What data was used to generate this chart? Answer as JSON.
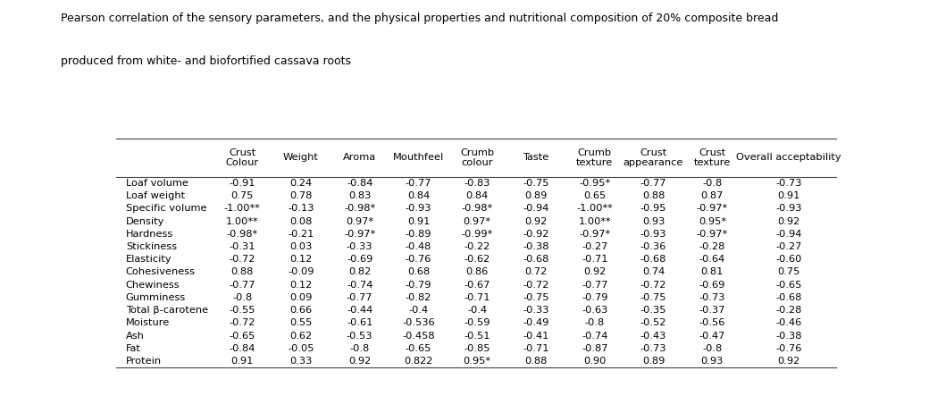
{
  "title_line1": "Pearson correlation of the sensory parameters, and the physical properties and nutritional composition of 20% composite bread",
  "title_line2": "produced from white- and biofortified cassava roots",
  "col_headers": [
    "Crust\nColour",
    "Weight",
    "Aroma",
    "Mouthfeel",
    "Crumb\ncolour",
    "Taste",
    "Crumb\ntexture",
    "Crust\nappearance",
    "Crust\ntexture",
    "Overall acceptability"
  ],
  "row_headers": [
    "Loaf volume",
    "Loaf weight",
    "Specific volume",
    "Density",
    "Hardness",
    "Stickiness",
    "Elasticity",
    "Cohesiveness",
    "Chewiness",
    "Gumminess",
    "Total β-carotene",
    "Moisture",
    "Ash",
    "Fat",
    "Protein"
  ],
  "table_data": [
    [
      "-0.91",
      "0.24",
      "-0.84",
      "-0.77",
      "-0.83",
      "-0.75",
      "-0.95*",
      "-0.77",
      "-0.8",
      "-0.73"
    ],
    [
      "0.75",
      "0.78",
      "0.83",
      "0.84",
      "0.84",
      "0.89",
      "0.65",
      "0.88",
      "0.87",
      "0.91"
    ],
    [
      "-1.00**",
      "-0.13",
      "-0.98*",
      "-0.93",
      "-0.98*",
      "-0.94",
      "-1.00**",
      "-0.95",
      "-0.97*",
      "-0.93"
    ],
    [
      "1.00**",
      "0.08",
      "0.97*",
      "0.91",
      "0.97*",
      "0.92",
      "1.00**",
      "0.93",
      "0.95*",
      "0.92"
    ],
    [
      "-0.98*",
      "-0.21",
      "-0.97*",
      "-0.89",
      "-0.99*",
      "-0.92",
      "-0.97*",
      "-0.93",
      "-0.97*",
      "-0.94"
    ],
    [
      "-0.31",
      "0.03",
      "-0.33",
      "-0.48",
      "-0.22",
      "-0.38",
      "-0.27",
      "-0.36",
      "-0.28",
      "-0.27"
    ],
    [
      "-0.72",
      "0.12",
      "-0.69",
      "-0.76",
      "-0.62",
      "-0.68",
      "-0.71",
      "-0.68",
      "-0.64",
      "-0.60"
    ],
    [
      "0.88",
      "-0.09",
      "0.82",
      "0.68",
      "0.86",
      "0.72",
      "0.92",
      "0.74",
      "0.81",
      "0.75"
    ],
    [
      "-0.77",
      "0.12",
      "-0.74",
      "-0.79",
      "-0.67",
      "-0.72",
      "-0.77",
      "-0.72",
      "-0.69",
      "-0.65"
    ],
    [
      "-0.8",
      "0.09",
      "-0.77",
      "-0.82",
      "-0.71",
      "-0.75",
      "-0.79",
      "-0.75",
      "-0.73",
      "-0.68"
    ],
    [
      "-0.55",
      "0.66",
      "-0.44",
      "-0.4",
      "-0.4",
      "-0.33",
      "-0.63",
      "-0.35",
      "-0.37",
      "-0.28"
    ],
    [
      "-0.72",
      "0.55",
      "-0.61",
      "-0.536",
      "-0.59",
      "-0.49",
      "-0.8",
      "-0.52",
      "-0.56",
      "-0.46"
    ],
    [
      "-0.65",
      "0.62",
      "-0.53",
      "-0.458",
      "-0.51",
      "-0.41",
      "-0.74",
      "-0.43",
      "-0.47",
      "-0.38"
    ],
    [
      "-0.84",
      "-0.05",
      "-0.8",
      "-0.65",
      "-0.85",
      "-0.71",
      "-0.87",
      "-0.73",
      "-0.8",
      "-0.76"
    ],
    [
      "0.91",
      "0.33",
      "0.92",
      "0.822",
      "0.95*",
      "0.88",
      "0.90",
      "0.89",
      "0.93",
      "0.92"
    ]
  ],
  "background_color": "#ffffff",
  "text_color": "#000000",
  "title_fontsize": 9.0,
  "header_fontsize": 8.2,
  "cell_fontsize": 8.2,
  "row_header_fontsize": 8.2,
  "line_color": "#444444"
}
